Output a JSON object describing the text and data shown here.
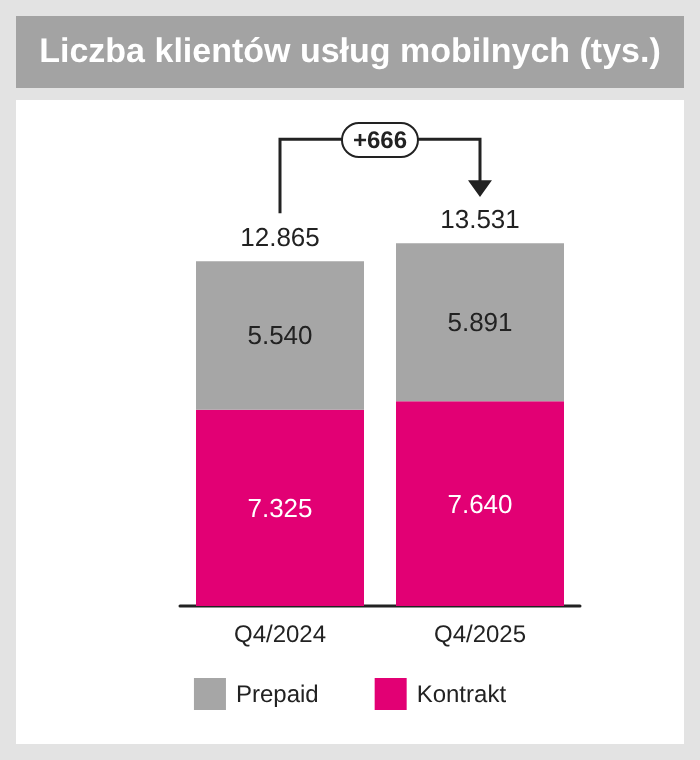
{
  "chart_data": {
    "type": "bar",
    "title": "Liczba klientów usług mobilnych (tys.)",
    "categories": [
      "Q4/2024",
      "Q4/2025"
    ],
    "stacked": true,
    "series": [
      {
        "name": "Kontrakt",
        "color": "#e20074",
        "values": [
          7325,
          7640
        ],
        "value_labels": [
          "7.325",
          "7.640"
        ]
      },
      {
        "name": "Prepaid",
        "color": "#a6a6a6",
        "values": [
          5540,
          5891
        ],
        "value_labels": [
          "5.540",
          "5.891"
        ]
      }
    ],
    "totals": [
      "12.865",
      "13.531"
    ],
    "annotations": [
      "+666"
    ],
    "legend": "bottom"
  }
}
